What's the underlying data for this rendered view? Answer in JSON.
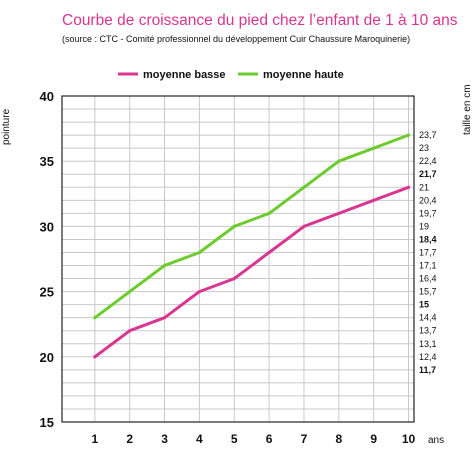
{
  "chart_data": {
    "type": "line",
    "title": "Courbe de croissance du pied chez l’enfant de 1 à 10 ans",
    "subtitle": "(source : CTC - Comité professionnel du développement Cuir Chaussure Maroquinerie)",
    "xlabel": "ans",
    "ylabel": "pointure",
    "y2label": "taille en cm",
    "categories": [
      "1",
      "2",
      "3",
      "4",
      "5",
      "6",
      "7",
      "8",
      "9",
      "10"
    ],
    "series": [
      {
        "name": "moyenne basse",
        "color": "#d9368f",
        "values": [
          20,
          22,
          23,
          25,
          26,
          28,
          30,
          31,
          32,
          33
        ]
      },
      {
        "name": "moyenne haute",
        "color": "#6ccc2e",
        "values": [
          23,
          25,
          27,
          28,
          30,
          31,
          33,
          35,
          36,
          37
        ]
      }
    ],
    "ylim": [
      15,
      40
    ],
    "yticks": [
      "15",
      "20",
      "25",
      "30",
      "35",
      "40"
    ],
    "y2ticks": [
      {
        "label": "23,7",
        "bold": false
      },
      {
        "label": "23",
        "bold": false
      },
      {
        "label": "22,4",
        "bold": false
      },
      {
        "label": "21,7",
        "bold": true
      },
      {
        "label": "21",
        "bold": false
      },
      {
        "label": "20,4",
        "bold": false
      },
      {
        "label": "19,7",
        "bold": false
      },
      {
        "label": "19",
        "bold": false
      },
      {
        "label": "18,4",
        "bold": true
      },
      {
        "label": "17,7",
        "bold": false
      },
      {
        "label": "17,1",
        "bold": false
      },
      {
        "label": "16,4",
        "bold": false
      },
      {
        "label": "15,7",
        "bold": false
      },
      {
        "label": "15",
        "bold": true
      },
      {
        "label": "14,4",
        "bold": false
      },
      {
        "label": "13,7",
        "bold": false
      },
      {
        "label": "13,1",
        "bold": false
      },
      {
        "label": "12,4",
        "bold": false
      },
      {
        "label": "11,7",
        "bold": true
      }
    ],
    "y2_values": [
      37,
      36,
      35,
      34,
      33,
      32,
      31,
      30,
      29,
      28,
      27,
      26,
      25,
      24,
      23,
      22,
      21,
      20,
      19
    ],
    "grid": true,
    "legend": "top",
    "colors": {
      "title": "#d9368f",
      "grid": "#c8c8c8",
      "axis": "#222222"
    }
  }
}
